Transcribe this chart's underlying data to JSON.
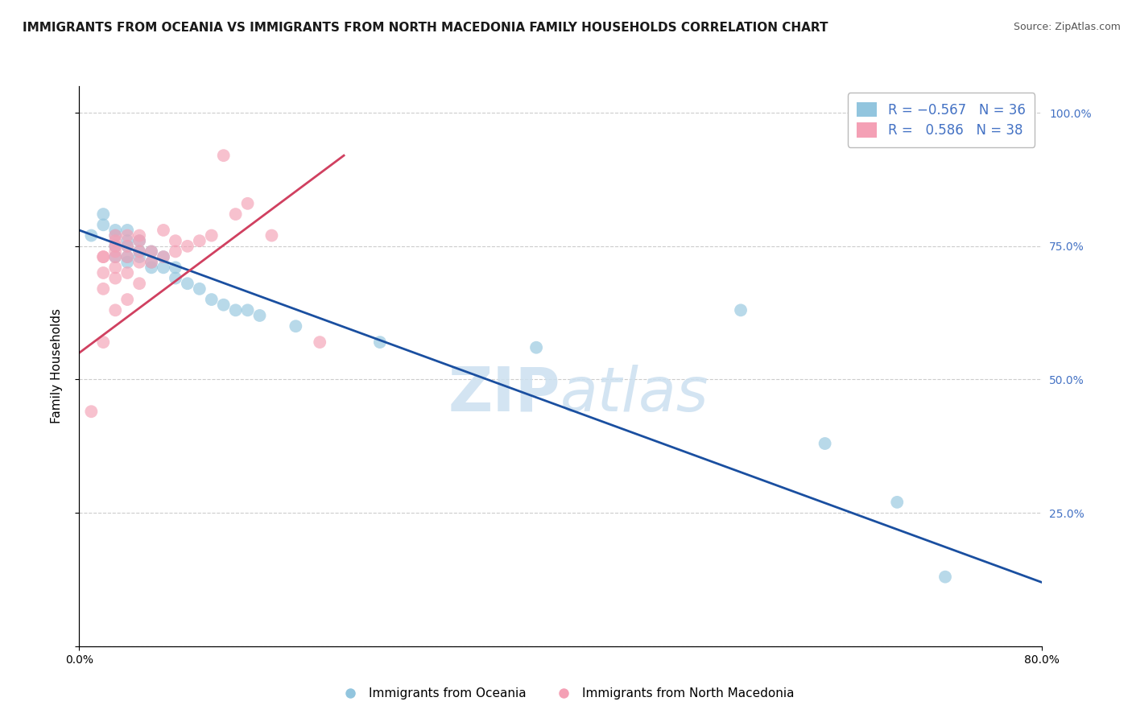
{
  "title": "IMMIGRANTS FROM OCEANIA VS IMMIGRANTS FROM NORTH MACEDONIA FAMILY HOUSEHOLDS CORRELATION CHART",
  "source": "Source: ZipAtlas.com",
  "ylabel": "Family Households",
  "ytick_labels": [
    "",
    "25.0%",
    "50.0%",
    "75.0%",
    "100.0%"
  ],
  "xlim": [
    0.0,
    0.8
  ],
  "ylim": [
    0.0,
    1.05
  ],
  "color_blue": "#92c5de",
  "color_pink": "#f4a0b5",
  "line_color_blue": "#1a4fa0",
  "line_color_pink": "#d04060",
  "watermark_color": "#cce0f0",
  "grid_color": "#cccccc",
  "background_color": "#ffffff",
  "title_fontsize": 11,
  "axis_label_fontsize": 11,
  "tick_fontsize": 10,
  "tick_color": "#4472c4",
  "legend_fontsize": 12,
  "blue_scatter_x": [
    0.01,
    0.02,
    0.02,
    0.03,
    0.03,
    0.03,
    0.03,
    0.04,
    0.04,
    0.04,
    0.04,
    0.04,
    0.05,
    0.05,
    0.05,
    0.06,
    0.06,
    0.06,
    0.07,
    0.07,
    0.08,
    0.08,
    0.09,
    0.1,
    0.11,
    0.12,
    0.13,
    0.14,
    0.15,
    0.18,
    0.25,
    0.38,
    0.55,
    0.62,
    0.68,
    0.72
  ],
  "blue_scatter_y": [
    0.77,
    0.79,
    0.81,
    0.78,
    0.77,
    0.75,
    0.73,
    0.78,
    0.76,
    0.75,
    0.73,
    0.72,
    0.76,
    0.74,
    0.73,
    0.74,
    0.72,
    0.71,
    0.73,
    0.71,
    0.71,
    0.69,
    0.68,
    0.67,
    0.65,
    0.64,
    0.63,
    0.63,
    0.62,
    0.6,
    0.57,
    0.56,
    0.63,
    0.38,
    0.27,
    0.13
  ],
  "pink_scatter_x": [
    0.01,
    0.02,
    0.02,
    0.02,
    0.02,
    0.02,
    0.03,
    0.03,
    0.03,
    0.03,
    0.03,
    0.03,
    0.03,
    0.03,
    0.04,
    0.04,
    0.04,
    0.04,
    0.04,
    0.05,
    0.05,
    0.05,
    0.05,
    0.05,
    0.06,
    0.06,
    0.07,
    0.07,
    0.08,
    0.08,
    0.09,
    0.1,
    0.11,
    0.12,
    0.13,
    0.14,
    0.16,
    0.2
  ],
  "pink_scatter_y": [
    0.44,
    0.57,
    0.67,
    0.7,
    0.73,
    0.73,
    0.63,
    0.69,
    0.71,
    0.73,
    0.74,
    0.75,
    0.76,
    0.77,
    0.65,
    0.7,
    0.73,
    0.75,
    0.77,
    0.68,
    0.72,
    0.74,
    0.76,
    0.77,
    0.72,
    0.74,
    0.73,
    0.78,
    0.74,
    0.76,
    0.75,
    0.76,
    0.77,
    0.92,
    0.81,
    0.83,
    0.77,
    0.57
  ],
  "blue_line_x": [
    0.0,
    0.8
  ],
  "blue_line_y": [
    0.78,
    0.12
  ],
  "pink_line_x": [
    0.0,
    0.22
  ],
  "pink_line_y": [
    0.55,
    0.92
  ]
}
